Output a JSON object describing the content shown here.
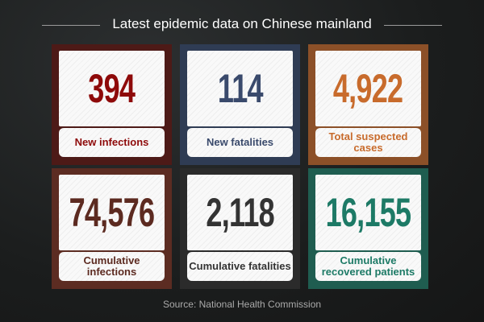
{
  "title": "Latest epidemic data on Chinese mainland",
  "cards": [
    {
      "value": "394",
      "label": "New infections",
      "border": "#4d1a17",
      "color": "#8e0a0a"
    },
    {
      "value": "114",
      "label": "New fatalities",
      "border": "#2f3c54",
      "color": "#3a4a6c"
    },
    {
      "value": "4,922",
      "label": "Total suspected cases",
      "border": "#8c5028",
      "color": "#c86b2c"
    },
    {
      "value": "74,576",
      "label": "Cumulative infections",
      "border": "#5c2c22",
      "color": "#5c2a20"
    },
    {
      "value": "2,118",
      "label": "Cumulative fatalities",
      "border": "#2b2b2b",
      "color": "#333333"
    },
    {
      "value": "16,155",
      "label": "Cumulative recovered patients",
      "border": "#1f5d50",
      "color": "#1d7a66"
    }
  ],
  "source": "Source: National Health Commission"
}
